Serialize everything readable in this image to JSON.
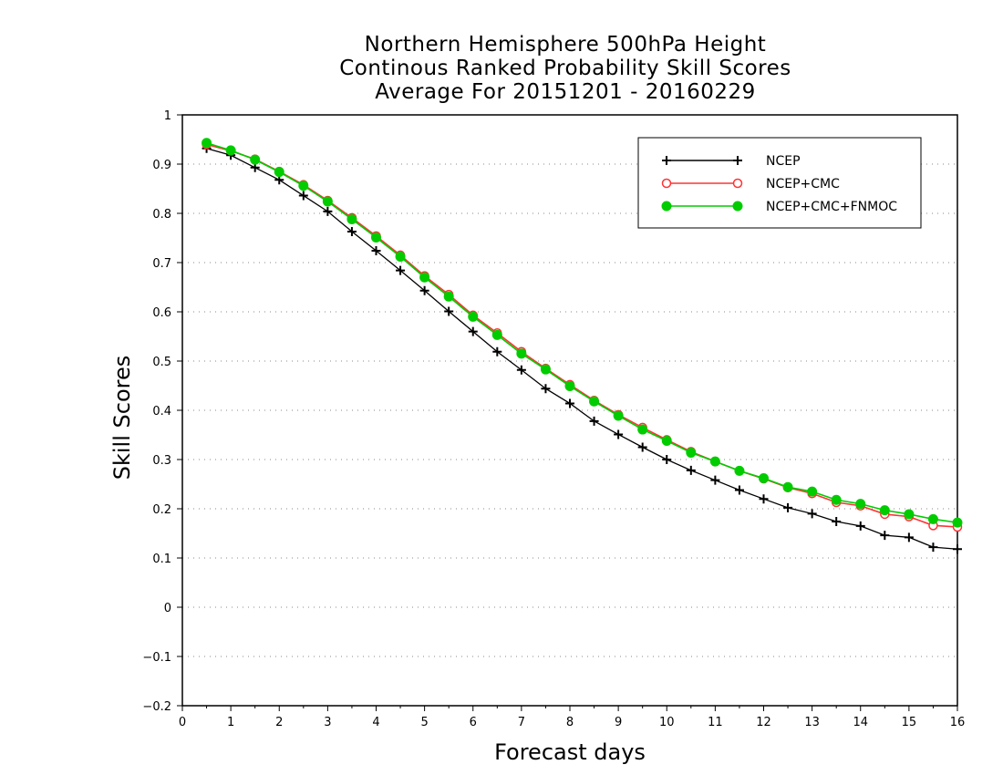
{
  "chart_data": {
    "type": "line",
    "title": [
      "Northern Hemisphere 500hPa Height",
      "Continous Ranked Probability Skill Scores",
      "Average For 20151201 - 20160229"
    ],
    "xlabel": "Forecast days",
    "ylabel": "Skill Scores",
    "xlim": [
      0,
      16
    ],
    "ylim": [
      -0.2,
      1
    ],
    "xticks": [
      "0",
      "1",
      "2",
      "3",
      "4",
      "5",
      "6",
      "7",
      "8",
      "9",
      "10",
      "11",
      "12",
      "13",
      "14",
      "15",
      "16"
    ],
    "yticks": [
      "−0.2",
      "−0.1",
      "0",
      "0.1",
      "0.2",
      "0.3",
      "0.4",
      "0.5",
      "0.6",
      "0.7",
      "0.8",
      "0.9",
      "1"
    ],
    "grid": "horizontal dotted",
    "legend_position": "top-right",
    "x": [
      0.5,
      1,
      1.5,
      2,
      2.5,
      3,
      3.5,
      4,
      4.5,
      5,
      5.5,
      6,
      6.5,
      7,
      7.5,
      8,
      8.5,
      9,
      9.5,
      10,
      10.5,
      11,
      11.5,
      12,
      12.5,
      13,
      13.5,
      14,
      14.5,
      15,
      15.5,
      16
    ],
    "series": [
      {
        "name": "NCEP",
        "color": "#000000",
        "marker": "plus",
        "values": [
          0.932,
          0.918,
          0.893,
          0.868,
          0.836,
          0.804,
          0.763,
          0.724,
          0.684,
          0.643,
          0.601,
          0.56,
          0.519,
          0.482,
          0.444,
          0.414,
          0.378,
          0.351,
          0.325,
          0.3,
          0.278,
          0.258,
          0.238,
          0.22,
          0.202,
          0.19,
          0.174,
          0.165,
          0.146,
          0.142,
          0.122,
          0.118
        ]
      },
      {
        "name": "NCEP+CMC",
        "color": "#ff3333",
        "marker": "open-circle",
        "values": [
          0.94,
          0.927,
          0.91,
          0.885,
          0.858,
          0.826,
          0.791,
          0.754,
          0.715,
          0.673,
          0.635,
          0.593,
          0.557,
          0.519,
          0.485,
          0.452,
          0.42,
          0.391,
          0.365,
          0.34,
          0.316,
          0.296,
          0.277,
          0.261,
          0.243,
          0.231,
          0.213,
          0.206,
          0.189,
          0.184,
          0.166,
          0.163
        ]
      },
      {
        "name": "NCEP+CMC+FNMOC",
        "color": "#00cc00",
        "marker": "filled-circle",
        "values": [
          0.943,
          0.928,
          0.909,
          0.884,
          0.856,
          0.824,
          0.788,
          0.751,
          0.712,
          0.67,
          0.631,
          0.59,
          0.553,
          0.515,
          0.483,
          0.449,
          0.418,
          0.389,
          0.361,
          0.338,
          0.314,
          0.296,
          0.277,
          0.262,
          0.244,
          0.235,
          0.218,
          0.21,
          0.197,
          0.189,
          0.179,
          0.172
        ]
      }
    ]
  }
}
